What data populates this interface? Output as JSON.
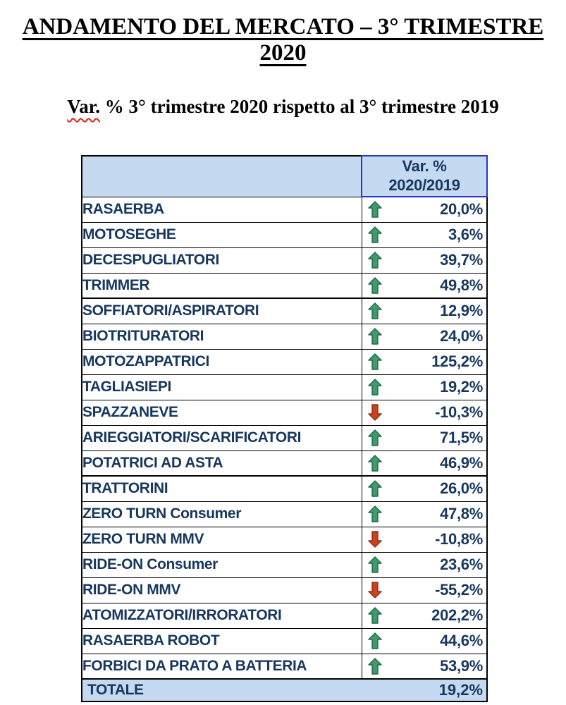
{
  "title": "ANDAMENTO DEL MERCATO – 3° TRIMESTRE 2020",
  "subtitle": {
    "misspelled_word": "Var.",
    "rest": " % 3° trimestre 2020 rispetto al 3° trimestre 2019"
  },
  "table": {
    "header": {
      "label_column": "",
      "value_column_line1": "Var. %",
      "value_column_line2": "2020/2019"
    },
    "rows": [
      {
        "label": "RASAERBA",
        "value": "20,0%",
        "trend": "up",
        "sep": false
      },
      {
        "label": "MOTOSEGHE",
        "value": "3,6%",
        "trend": "up",
        "sep": false
      },
      {
        "label": "DECESPUGLIATORI",
        "value": "39,7%",
        "trend": "up",
        "sep": false
      },
      {
        "label": "TRIMMER",
        "value": "49,8%",
        "trend": "up",
        "sep": false
      },
      {
        "label": "SOFFIATORI/ASPIRATORI",
        "value": "12,9%",
        "trend": "up",
        "sep": true
      },
      {
        "label": "BIOTRITURATORI",
        "value": "24,0%",
        "trend": "up",
        "sep": false
      },
      {
        "label": "MOTOZAPPATRICI",
        "value": "125,2%",
        "trend": "up",
        "sep": false
      },
      {
        "label": "TAGLIASIEPI",
        "value": "19,2%",
        "trend": "up",
        "sep": false
      },
      {
        "label": "SPAZZANEVE",
        "value": "-10,3%",
        "trend": "down",
        "sep": false
      },
      {
        "label": "ARIEGGIATORI/SCARIFICATORI",
        "value": "71,5%",
        "trend": "up",
        "sep": false
      },
      {
        "label": "POTATRICI AD ASTA",
        "value": "46,9%",
        "trend": "up",
        "sep": false
      },
      {
        "label": "TRATTORINI",
        "value": "26,0%",
        "trend": "up",
        "sep": true
      },
      {
        "label": "ZERO TURN Consumer",
        "value": "47,8%",
        "trend": "up",
        "sep": false
      },
      {
        "label": "ZERO TURN MMV",
        "value": "-10,8%",
        "trend": "down",
        "sep": false
      },
      {
        "label": "RIDE-ON Consumer",
        "value": "23,6%",
        "trend": "up",
        "sep": false
      },
      {
        "label": "RIDE-ON MMV",
        "value": "-55,2%",
        "trend": "down",
        "sep": false
      },
      {
        "label": "ATOMIZZATORI/IRRORATORI",
        "value": "202,2%",
        "trend": "up",
        "sep": false
      },
      {
        "label": "RASAERBA ROBOT",
        "value": "44,6%",
        "trend": "up",
        "sep": false
      },
      {
        "label": "FORBICI DA PRATO A BATTERIA",
        "value": "53,9%",
        "trend": "up",
        "sep": false
      }
    ],
    "total": {
      "label": "TOTALE",
      "value": "19,2%"
    }
  },
  "colors": {
    "navy_text": "#17375e",
    "header_bg": "#c5d9f1",
    "header_border_blue": "#2a35c9",
    "up_arrow_fill": "#43996b",
    "up_arrow_stroke": "#1c6b47",
    "down_arrow_fill": "#c8431f",
    "down_arrow_stroke": "#8f2e14",
    "squiggle_red": "#e02010"
  },
  "chart_data": {
    "type": "table",
    "title": "ANDAMENTO DEL MERCATO – 3° TRIMESTRE 2020",
    "subtitle": "Var. % 3° trimestre 2020 rispetto al 3° trimestre 2019",
    "value_column": "Var. % 2020/2019",
    "categories": [
      "RASAERBA",
      "MOTOSEGHE",
      "DECESPUGLIATORI",
      "TRIMMER",
      "SOFFIATORI/ASPIRATORI",
      "BIOTRITURATORI",
      "MOTOZAPPATRICI",
      "TAGLIASIEPI",
      "SPAZZANEVE",
      "ARIEGGIATORI/SCARIFICATORI",
      "POTATRICI AD ASTA",
      "TRATTORINI",
      "ZERO TURN Consumer",
      "ZERO TURN MMV",
      "RIDE-ON Consumer",
      "RIDE-ON MMV",
      "ATOMIZZATORI/IRRORATORI",
      "RASAERBA ROBOT",
      "FORBICI DA PRATO A BATTERIA"
    ],
    "values": [
      20.0,
      3.6,
      39.7,
      49.8,
      12.9,
      24.0,
      125.2,
      19.2,
      -10.3,
      71.5,
      46.9,
      26.0,
      47.8,
      -10.8,
      23.6,
      -55.2,
      202.2,
      44.6,
      53.9
    ],
    "total": 19.2,
    "units": "percent"
  }
}
